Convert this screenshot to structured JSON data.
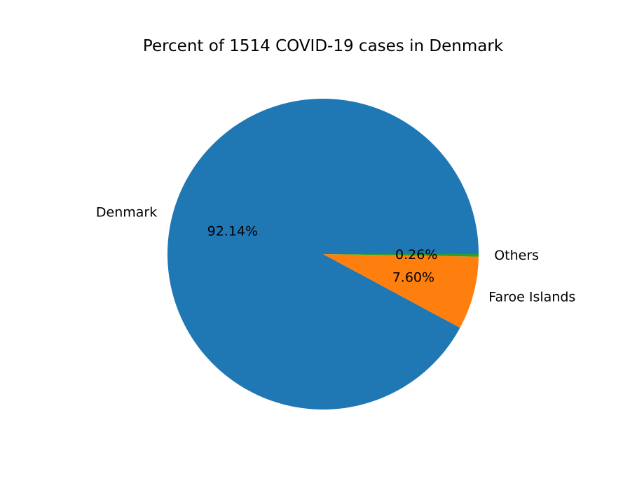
{
  "chart_data": {
    "type": "pie",
    "title": "Percent of 1514 COVID-19 cases in Denmark",
    "categories": [
      "Denmark",
      "Faroe Islands",
      "Others"
    ],
    "values": [
      92.14,
      7.6,
      0.26
    ],
    "value_labels": [
      "92.14%",
      "7.60%",
      "0.26%"
    ],
    "colors": [
      "#1f77b4",
      "#ff7f0e",
      "#2ca02c"
    ],
    "start_angle_deg": 0,
    "direction": "counterclockwise",
    "legend": "none"
  }
}
